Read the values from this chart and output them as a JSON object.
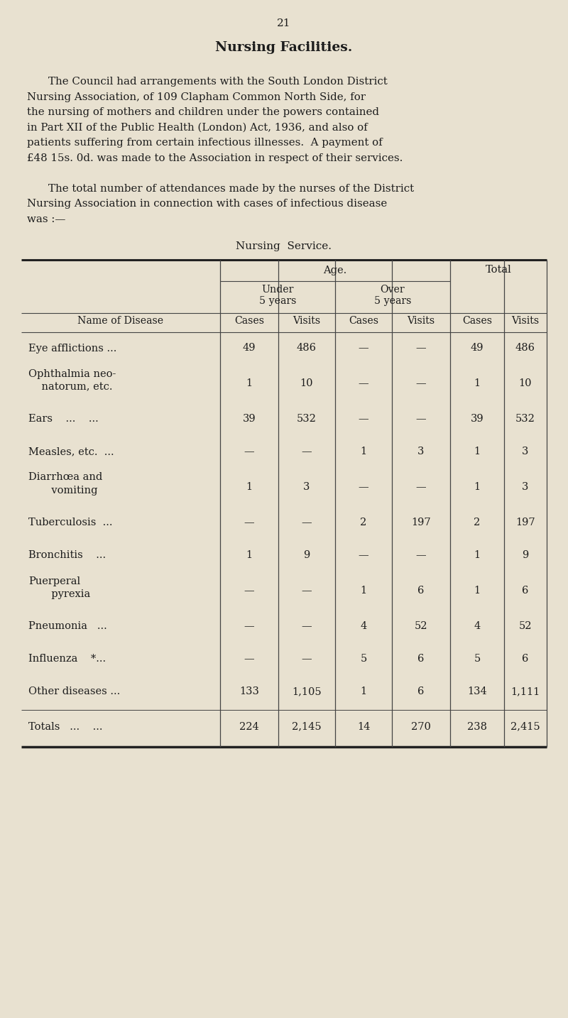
{
  "page_number": "21",
  "title": "Nursing Facilities.",
  "para1_lines": [
    "The Council had arrangements with the South London District",
    "Nursing Association, of 109 Clapham Common North Side, for",
    "the nursing of mothers and children under the powers contained",
    "in Part XII of the Public Health (London) Act, 1936, and also of",
    "patients suffering from certain infectious illnesses.  A payment of",
    "£48 15s. 0d. was made to the Association in respect of their services."
  ],
  "para2_lines": [
    "The total number of attendances made by the nurses of the District",
    "Nursing Association in connection with cases of infectious disease",
    "was :—"
  ],
  "table_title": "Nursing  Service.",
  "rows": [
    {
      "name": "Eye afflictions ...",
      "name2": null,
      "u_cases": "49",
      "u_visits": "486",
      "o_cases": "—",
      "o_visits": "—",
      "t_cases": "49",
      "t_visits": "486"
    },
    {
      "name": "Ophthalmia neo-",
      "name2": "    natorum, etc.",
      "u_cases": "1",
      "u_visits": "10",
      "o_cases": "—",
      "o_visits": "—",
      "t_cases": "1",
      "t_visits": "10"
    },
    {
      "name": "Ears    ...    ...",
      "name2": null,
      "u_cases": "39",
      "u_visits": "532",
      "o_cases": "—",
      "o_visits": "—",
      "t_cases": "39",
      "t_visits": "532"
    },
    {
      "name": "Measles, etc.  ...",
      "name2": null,
      "u_cases": "—",
      "u_visits": "—",
      "o_cases": "1",
      "o_visits": "3",
      "t_cases": "1",
      "t_visits": "3"
    },
    {
      "name": "Diarrhœa and",
      "name2": "       vomiting",
      "u_cases": "1",
      "u_visits": "3",
      "o_cases": "—",
      "o_visits": "—",
      "t_cases": "1",
      "t_visits": "3"
    },
    {
      "name": "Tuberculosis  ...",
      "name2": null,
      "u_cases": "—",
      "u_visits": "—",
      "o_cases": "2",
      "o_visits": "197",
      "t_cases": "2",
      "t_visits": "197"
    },
    {
      "name": "Bronchitis    ...",
      "name2": null,
      "u_cases": "1",
      "u_visits": "9",
      "o_cases": "—",
      "o_visits": "—",
      "t_cases": "1",
      "t_visits": "9"
    },
    {
      "name": "Puerperal",
      "name2": "       pyrexia",
      "u_cases": "—",
      "u_visits": "—",
      "o_cases": "1",
      "o_visits": "6",
      "t_cases": "1",
      "t_visits": "6"
    },
    {
      "name": "Pneumonia   ...",
      "name2": null,
      "u_cases": "—",
      "u_visits": "—",
      "o_cases": "4",
      "o_visits": "52",
      "t_cases": "4",
      "t_visits": "52"
    },
    {
      "name": "Influenza    *...",
      "name2": null,
      "u_cases": "—",
      "u_visits": "—",
      "o_cases": "5",
      "o_visits": "6",
      "t_cases": "5",
      "t_visits": "6"
    },
    {
      "name": "Other diseases ...",
      "name2": null,
      "u_cases": "133",
      "u_visits": "1,105",
      "o_cases": "1",
      "o_visits": "6",
      "t_cases": "134",
      "t_visits": "1,111"
    }
  ],
  "totals": {
    "name": "Totals   ...    ...",
    "u_cases": "224",
    "u_visits": "2,145",
    "o_cases": "14",
    "o_visits": "270",
    "t_cases": "238",
    "t_visits": "2,415"
  },
  "bg_color": "#e8e1d0",
  "text_color": "#1c1c1c",
  "line_color": "#444444"
}
